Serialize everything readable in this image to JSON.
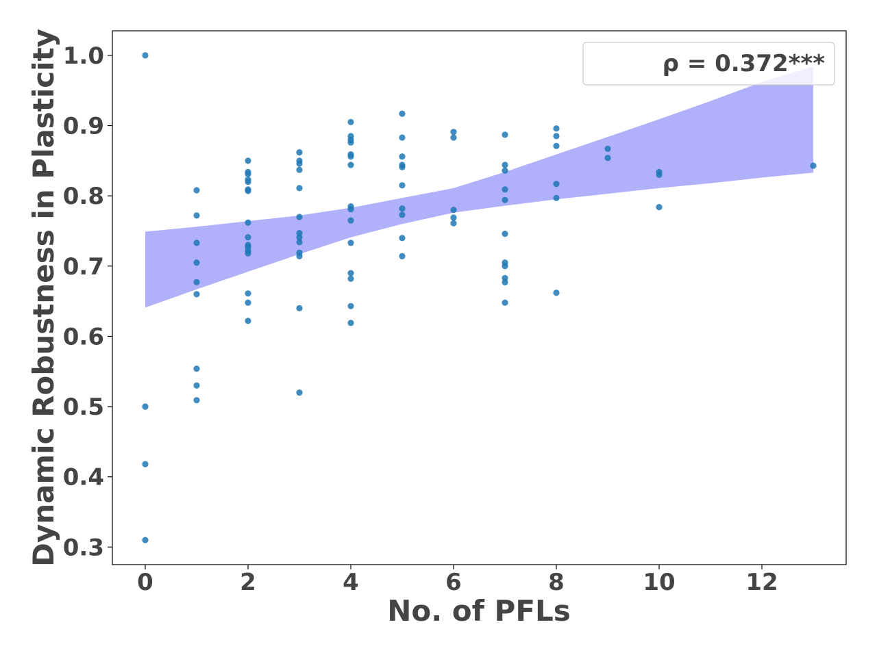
{
  "chart_data": {
    "type": "scatter",
    "xlabel": "No. of PFLs",
    "ylabel": "Dynamic Robustness in Plasticity",
    "xlim": [
      -0.64,
      13.64
    ],
    "ylim": [
      0.275,
      1.035
    ],
    "xticks": [
      0,
      2,
      4,
      6,
      8,
      10,
      12
    ],
    "xtick_labels": [
      "0",
      "2",
      "4",
      "6",
      "8",
      "10",
      "12"
    ],
    "yticks": [
      0.3,
      0.4,
      0.5,
      0.6,
      0.7,
      0.8,
      0.9,
      1.0
    ],
    "ytick_labels": [
      "0.3",
      "0.4",
      "0.5",
      "0.6",
      "0.7",
      "0.8",
      "0.9",
      "1.0"
    ],
    "grid": false,
    "legend": {
      "text": "ρ = 0.372***",
      "placement": "top-right"
    },
    "colors": {
      "points": "#1f77b4",
      "band": "#b0b0fb",
      "text": "#444444",
      "axes": "#000000"
    },
    "points": [
      [
        0,
        1.0
      ],
      [
        0,
        0.5
      ],
      [
        0,
        0.418
      ],
      [
        0,
        0.31
      ],
      [
        1,
        0.808
      ],
      [
        1,
        0.772
      ],
      [
        1,
        0.733
      ],
      [
        1,
        0.705
      ],
      [
        1,
        0.677
      ],
      [
        1,
        0.66
      ],
      [
        1,
        0.554
      ],
      [
        1,
        0.53
      ],
      [
        1,
        0.509
      ],
      [
        2,
        0.85
      ],
      [
        2,
        0.834
      ],
      [
        2,
        0.831
      ],
      [
        2,
        0.823
      ],
      [
        2,
        0.82
      ],
      [
        2,
        0.809
      ],
      [
        2,
        0.807
      ],
      [
        2,
        0.762
      ],
      [
        2,
        0.741
      ],
      [
        2,
        0.73
      ],
      [
        2,
        0.727
      ],
      [
        2,
        0.722
      ],
      [
        2,
        0.718
      ],
      [
        2,
        0.661
      ],
      [
        2,
        0.648
      ],
      [
        2,
        0.622
      ],
      [
        3,
        0.862
      ],
      [
        3,
        0.85
      ],
      [
        3,
        0.846
      ],
      [
        3,
        0.837
      ],
      [
        3,
        0.811
      ],
      [
        3,
        0.77
      ],
      [
        3,
        0.747
      ],
      [
        3,
        0.741
      ],
      [
        3,
        0.734
      ],
      [
        3,
        0.719
      ],
      [
        3,
        0.714
      ],
      [
        3,
        0.64
      ],
      [
        3,
        0.52
      ],
      [
        4,
        0.905
      ],
      [
        4,
        0.885
      ],
      [
        4,
        0.88
      ],
      [
        4,
        0.876
      ],
      [
        4,
        0.859
      ],
      [
        4,
        0.856
      ],
      [
        4,
        0.844
      ],
      [
        4,
        0.785
      ],
      [
        4,
        0.781
      ],
      [
        4,
        0.765
      ],
      [
        4,
        0.733
      ],
      [
        4,
        0.69
      ],
      [
        4,
        0.682
      ],
      [
        4,
        0.643
      ],
      [
        4,
        0.619
      ],
      [
        5,
        0.917
      ],
      [
        5,
        0.883
      ],
      [
        5,
        0.856
      ],
      [
        5,
        0.844
      ],
      [
        5,
        0.841
      ],
      [
        5,
        0.815
      ],
      [
        5,
        0.782
      ],
      [
        5,
        0.773
      ],
      [
        5,
        0.74
      ],
      [
        5,
        0.714
      ],
      [
        6,
        0.891
      ],
      [
        6,
        0.883
      ],
      [
        6,
        0.78
      ],
      [
        6,
        0.769
      ],
      [
        6,
        0.761
      ],
      [
        7,
        0.887
      ],
      [
        7,
        0.844
      ],
      [
        7,
        0.836
      ],
      [
        7,
        0.809
      ],
      [
        7,
        0.794
      ],
      [
        7,
        0.746
      ],
      [
        7,
        0.705
      ],
      [
        7,
        0.7
      ],
      [
        7,
        0.683
      ],
      [
        7,
        0.677
      ],
      [
        7,
        0.648
      ],
      [
        8,
        0.896
      ],
      [
        8,
        0.885
      ],
      [
        8,
        0.871
      ],
      [
        8,
        0.817
      ],
      [
        8,
        0.797
      ],
      [
        8,
        0.662
      ],
      [
        9,
        0.867
      ],
      [
        9,
        0.854
      ],
      [
        10,
        0.834
      ],
      [
        10,
        0.83
      ],
      [
        10,
        0.784
      ],
      [
        13,
        0.843
      ]
    ],
    "confidence_band": {
      "x": [
        0,
        1,
        2,
        3,
        4,
        5,
        6,
        7,
        8,
        9,
        10,
        11,
        12,
        13
      ],
      "upper": [
        0.749,
        0.756,
        0.764,
        0.772,
        0.783,
        0.797,
        0.811,
        0.834,
        0.859,
        0.884,
        0.909,
        0.935,
        0.962,
        0.984
      ],
      "lower": [
        0.641,
        0.667,
        0.692,
        0.717,
        0.741,
        0.76,
        0.776,
        0.786,
        0.795,
        0.803,
        0.811,
        0.818,
        0.826,
        0.833
      ]
    }
  }
}
